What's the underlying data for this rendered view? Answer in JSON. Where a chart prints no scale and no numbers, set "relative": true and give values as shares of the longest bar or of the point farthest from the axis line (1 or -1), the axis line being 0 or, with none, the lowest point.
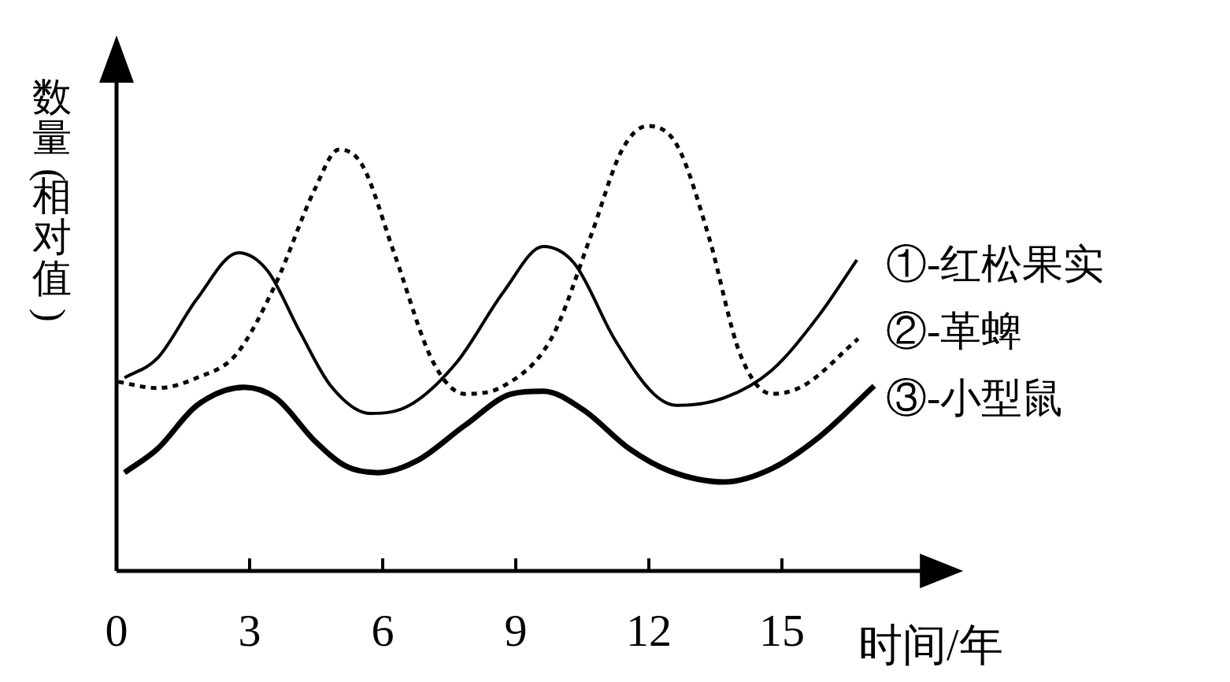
{
  "chart_data": {
    "type": "line",
    "relative": true,
    "xlabel": "时间/年",
    "ylabel": "数量(相对值)",
    "xlim": [
      0,
      18.2
    ],
    "xticks": [
      0,
      3,
      6,
      9,
      12,
      15
    ],
    "series": [
      {
        "name": "①-红松果实",
        "color": "#000000",
        "line_style": "solid",
        "x": [
          0.18,
          0.92,
          1.81,
          2.75,
          3.41,
          4.12,
          4.83,
          5.72,
          6.6,
          7.67,
          8.73,
          9.62,
          10.33,
          11.22,
          12.11,
          12.64,
          13.7,
          14.77,
          15.84,
          16.69
        ],
        "values": [
          0.434,
          0.478,
          0.611,
          0.715,
          0.674,
          0.54,
          0.416,
          0.354,
          0.372,
          0.469,
          0.628,
          0.729,
          0.69,
          0.522,
          0.398,
          0.372,
          0.389,
          0.451,
          0.575,
          0.699
        ]
      },
      {
        "name": "②-革蜱",
        "color": "#000000",
        "line_style": "dotted",
        "x": [
          0.04,
          0.92,
          1.81,
          2.7,
          3.59,
          4.47,
          5.01,
          5.54,
          6.25,
          7.14,
          7.85,
          8.73,
          9.8,
          10.69,
          11.4,
          11.97,
          12.64,
          13.35,
          14.06,
          14.77,
          15.48,
          16.72
        ],
        "values": [
          0.425,
          0.411,
          0.434,
          0.487,
          0.646,
          0.858,
          0.947,
          0.912,
          0.717,
          0.469,
          0.398,
          0.416,
          0.522,
          0.752,
          0.947,
          1.0,
          0.956,
          0.752,
          0.487,
          0.398,
          0.416,
          0.522
        ]
      },
      {
        "name": "③-小型鼠",
        "color": "#000000",
        "line_style": "solid",
        "x": [
          0.18,
          0.92,
          1.81,
          2.88,
          3.59,
          4.47,
          5.18,
          5.89,
          6.78,
          7.85,
          8.91,
          9.62,
          10.51,
          11.57,
          12.46,
          13.7,
          14.77,
          15.84,
          17.08
        ],
        "values": [
          0.221,
          0.274,
          0.372,
          0.413,
          0.389,
          0.292,
          0.235,
          0.221,
          0.248,
          0.327,
          0.398,
          0.404,
          0.363,
          0.274,
          0.225,
          0.2,
          0.23,
          0.301,
          0.416
        ]
      }
    ]
  }
}
